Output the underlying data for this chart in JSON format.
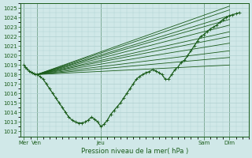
{
  "bg_color": "#d0e8e8",
  "grid_color": "#b0d0d0",
  "line_color": "#1a5c1a",
  "ylabel_values": [
    1012,
    1013,
    1014,
    1015,
    1016,
    1017,
    1018,
    1019,
    1020,
    1021,
    1022,
    1023,
    1024,
    1025
  ],
  "ylim": [
    1011.5,
    1025.5
  ],
  "xlabel": "Pression niveau de la mer( hPa )",
  "day_labels": [
    "Mer",
    "Ven",
    "Jeu",
    "Sam",
    "Dim"
  ],
  "day_positions": [
    0,
    8,
    48,
    112,
    128
  ],
  "xlim": [
    -2,
    140
  ],
  "fan_origin_x": 8,
  "fan_origin_y": 1018.0,
  "fan_end_x": 128,
  "fan_endpoints_y": [
    1025.2,
    1024.8,
    1024.2,
    1023.8,
    1023.2,
    1022.5,
    1022.0,
    1021.3,
    1020.5,
    1019.8,
    1019.0
  ],
  "main_line_x": [
    0,
    1,
    2,
    3,
    4,
    5,
    6,
    7,
    8,
    10,
    12,
    14,
    16,
    18,
    20,
    22,
    24,
    26,
    28,
    30,
    32,
    34,
    36,
    38,
    40,
    42,
    44,
    46,
    48,
    50,
    52,
    54,
    56,
    58,
    60,
    62,
    64,
    66,
    68,
    70,
    72,
    74,
    76,
    78,
    80,
    82,
    84,
    86,
    88,
    90,
    92,
    94,
    96,
    98,
    100,
    102,
    104,
    106,
    108,
    110,
    112,
    114,
    116,
    118,
    120,
    122,
    124,
    126,
    128,
    130,
    132,
    134
  ],
  "main_line_y": [
    1019.0,
    1018.8,
    1018.6,
    1018.4,
    1018.3,
    1018.2,
    1018.1,
    1018.0,
    1018.0,
    1017.8,
    1017.5,
    1017.0,
    1016.5,
    1016.0,
    1015.5,
    1015.0,
    1014.5,
    1014.0,
    1013.5,
    1013.2,
    1013.0,
    1012.9,
    1012.9,
    1013.0,
    1013.2,
    1013.5,
    1013.3,
    1013.0,
    1012.5,
    1012.8,
    1013.2,
    1013.8,
    1014.2,
    1014.6,
    1015.0,
    1015.5,
    1016.0,
    1016.5,
    1017.0,
    1017.5,
    1017.8,
    1018.0,
    1018.2,
    1018.3,
    1018.5,
    1018.4,
    1018.2,
    1018.0,
    1017.5,
    1017.5,
    1018.0,
    1018.5,
    1018.8,
    1019.3,
    1019.5,
    1020.0,
    1020.5,
    1021.0,
    1021.5,
    1022.0,
    1022.2,
    1022.5,
    1022.8,
    1023.0,
    1023.2,
    1023.5,
    1023.8,
    1024.0,
    1024.2,
    1024.3,
    1024.4,
    1024.5
  ]
}
